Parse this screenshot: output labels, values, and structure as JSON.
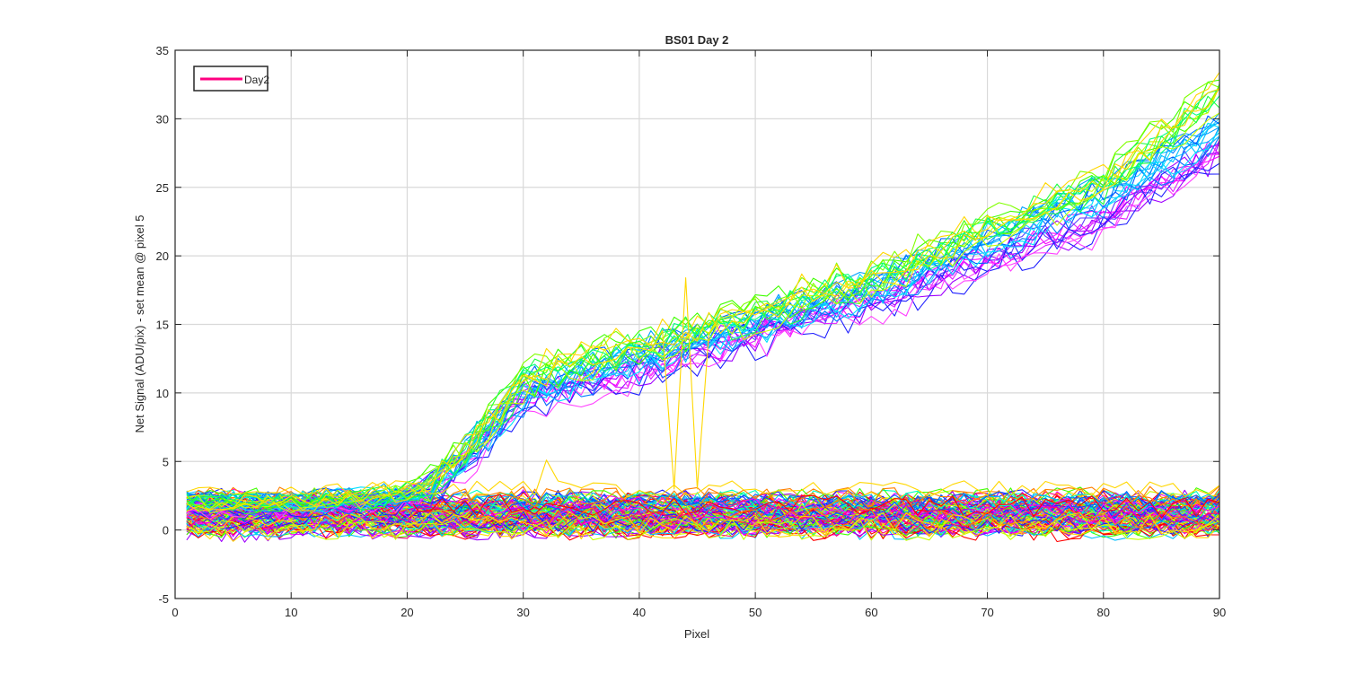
{
  "chart_data": {
    "type": "line",
    "title": "BS01 Day 2",
    "xlabel": "Pixel",
    "ylabel": "Net Signal (ADU/pix) - set mean @ pixel 5",
    "xlim": [
      0,
      90
    ],
    "ylim": [
      -5,
      35
    ],
    "xticks": [
      0,
      10,
      20,
      30,
      40,
      50,
      60,
      70,
      80,
      90
    ],
    "yticks": [
      -5,
      0,
      5,
      10,
      15,
      20,
      25,
      30,
      35
    ],
    "grid": true,
    "legend": {
      "placement": "top-left",
      "entries": [
        {
          "label": "Day2",
          "color": "#ff0080"
        }
      ]
    },
    "pixel_range": [
      1,
      90
    ],
    "x_sample_points": [
      1,
      10,
      20,
      22,
      25,
      30,
      35,
      40,
      44,
      50,
      60,
      70,
      80,
      90
    ],
    "signal_group_means": {
      "description_source": "rising traces (upper bundle)",
      "green_yellow": [
        2.0,
        2.0,
        2.8,
        3.5,
        6.0,
        11.0,
        12.5,
        13.5,
        14.5,
        16.0,
        18.5,
        22.0,
        25.5,
        32.0
      ],
      "cyan_blue": [
        2.0,
        2.0,
        2.5,
        3.2,
        5.5,
        10.0,
        11.5,
        12.5,
        13.5,
        15.0,
        17.5,
        21.0,
        24.5,
        29.0
      ],
      "blue_magenta": [
        1.5,
        1.5,
        2.2,
        2.8,
        5.0,
        9.5,
        10.5,
        11.5,
        12.5,
        14.0,
        16.5,
        19.5,
        22.5,
        27.5
      ]
    },
    "baseline_band": {
      "min": -1.0,
      "max": 4.0,
      "typical": 1.2
    },
    "spikes": [
      {
        "x": 32,
        "y": 5.1,
        "color": "#ffd700"
      },
      {
        "x": 44,
        "y": 18.4,
        "color": "#ffd700"
      }
    ],
    "rising_count": 36,
    "baseline_count": 100,
    "colors": {
      "axis": "#262626",
      "grid": "#d9d9d9",
      "hue_cycle": [
        "#ff0000",
        "#ff8000",
        "#ffd700",
        "#c8ff00",
        "#40ff00",
        "#00ffc0",
        "#00c0ff",
        "#0060ff",
        "#2020ff",
        "#a000ff",
        "#ff00ff",
        "#ff0080"
      ]
    }
  }
}
